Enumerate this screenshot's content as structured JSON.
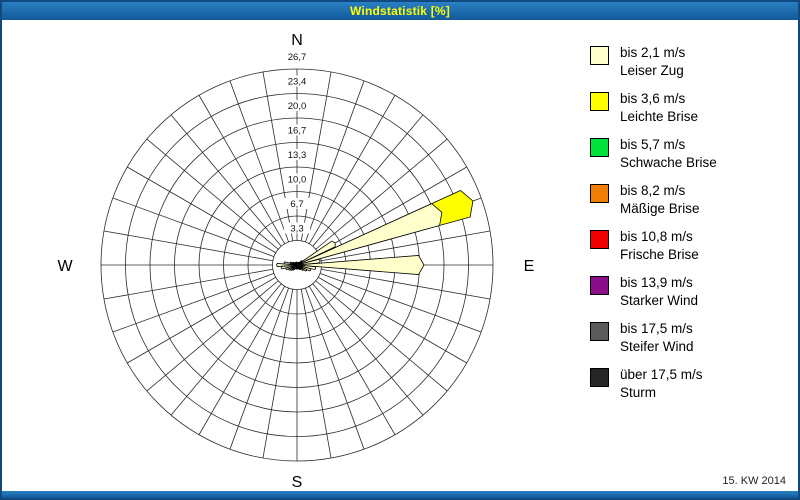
{
  "window": {
    "title": "Windstatistik [%]",
    "footer_date": "15. KW 2014"
  },
  "chart_data": {
    "type": "bar",
    "subtype": "wind-rose-polar",
    "title": "Windstatistik [%]",
    "units": "%",
    "grid": true,
    "legend_position": "right",
    "compass_labels": [
      "N",
      "E",
      "S",
      "W"
    ],
    "rmax": 26.7,
    "radial_ticks": [
      3.3,
      6.7,
      10.0,
      13.3,
      16.7,
      20.0,
      23.4,
      26.7
    ],
    "radial_tick_labels": [
      "3,3",
      "6,7",
      "10,0",
      "13,3",
      "16,7",
      "20,0",
      "23,4",
      "26,7"
    ],
    "direction_step_deg": 10,
    "directions_deg": [
      0,
      10,
      20,
      30,
      40,
      50,
      60,
      70,
      80,
      90,
      100,
      110,
      120,
      130,
      140,
      150,
      160,
      170,
      180,
      190,
      200,
      210,
      220,
      230,
      240,
      250,
      260,
      270,
      280,
      290,
      300,
      310,
      320,
      330,
      340,
      350
    ],
    "series": [
      {
        "name": "bis 2,1 m/s",
        "color": "#ffffcc",
        "values": [
          0.4,
          0.3,
          0.3,
          0.4,
          0.5,
          0.9,
          6.0,
          21.0,
          3.2,
          17.3,
          2.6,
          2.0,
          1.5,
          1.1,
          0.8,
          0.7,
          0.5,
          0.5,
          0.6,
          0.5,
          0.5,
          0.7,
          0.9,
          1.1,
          1.3,
          1.6,
          2.2,
          2.8,
          1.8,
          1.0,
          0.7,
          0.5,
          0.4,
          0.4,
          0.4,
          0.4
        ]
      },
      {
        "name": "bis 3,6 m/s",
        "color": "#ffff00",
        "values": [
          0,
          0,
          0,
          0,
          0,
          0,
          0,
          4.5,
          0,
          0,
          0,
          0,
          0,
          0,
          0,
          0,
          0,
          0,
          0,
          0,
          0,
          0,
          0,
          0,
          0,
          0,
          0,
          0,
          0,
          0,
          0,
          0,
          0,
          0,
          0,
          0
        ]
      }
    ],
    "legend": [
      {
        "speed": "bis 2,1 m/s",
        "label": "Leiser Zug",
        "color": "#ffffcc"
      },
      {
        "speed": "bis 3,6 m/s",
        "label": "Leichte Brise",
        "color": "#ffff00"
      },
      {
        "speed": "bis 5,7 m/s",
        "label": "Schwache Brise",
        "color": "#00e13c"
      },
      {
        "speed": "bis 8,2 m/s",
        "label": "Mäßige Brise",
        "color": "#f07d05"
      },
      {
        "speed": "bis 10,8 m/s",
        "label": "Frische Brise",
        "color": "#ee0000"
      },
      {
        "speed": "bis 13,9 m/s",
        "label": "Starker Wind",
        "color": "#8a0d8a"
      },
      {
        "speed": "bis 17,5 m/s",
        "label": "Steifer Wind",
        "color": "#5a5a5a"
      },
      {
        "speed": "über 17,5 m/s",
        "label": "Sturm",
        "color": "#262626"
      }
    ]
  }
}
